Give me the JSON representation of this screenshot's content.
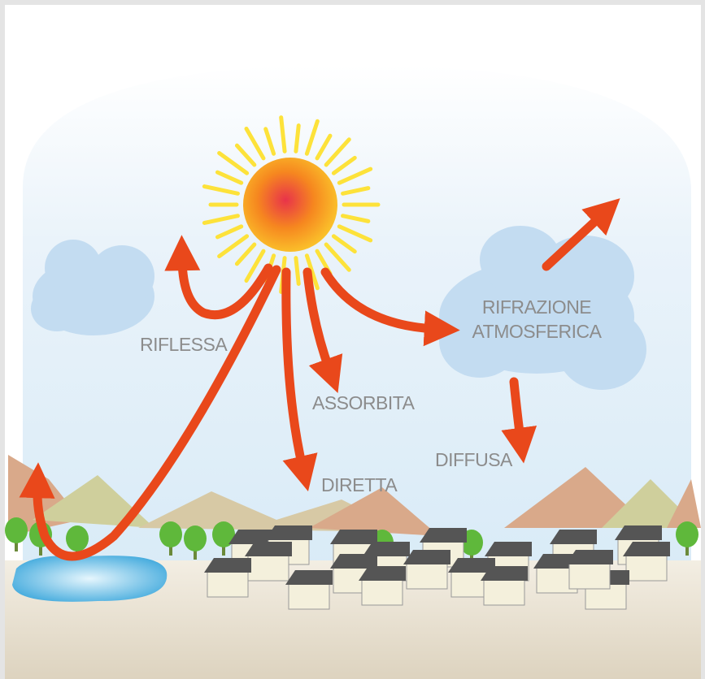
{
  "labels": {
    "reflected": "RIFLESSA",
    "absorbed": "ASSORBITA",
    "direct": "DIRETTA",
    "diffuse": "DIFFUSA",
    "refraction": [
      "RIFRAZIONE",
      "ATMOSFERICA"
    ]
  }
}
